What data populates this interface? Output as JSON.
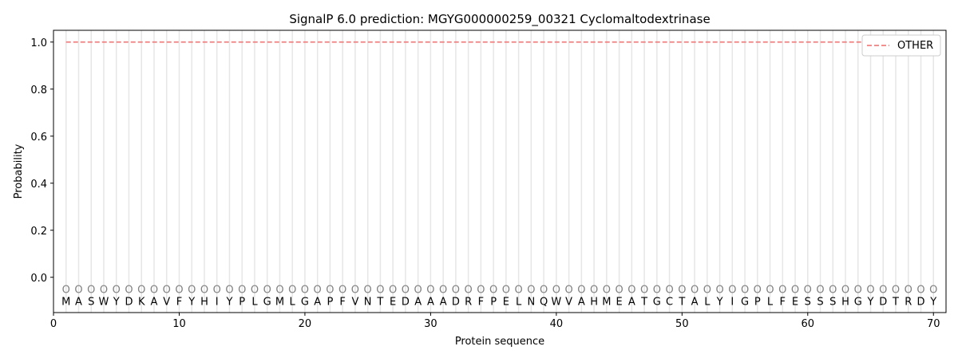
{
  "chart_data": {
    "type": "line",
    "title": "SignalP 6.0 prediction: MGYG000000259_00321 Cyclomaltodextrinase",
    "xlabel": "Protein sequence",
    "ylabel": "Probability",
    "xlim": [
      0,
      71
    ],
    "ylim": [
      -0.15,
      1.05
    ],
    "xticks": [
      0,
      10,
      20,
      30,
      40,
      50,
      60,
      70
    ],
    "yticks": [
      0.0,
      0.2,
      0.4,
      0.6,
      0.8,
      1.0
    ],
    "ytick_labels": [
      "0.0",
      "0.2",
      "0.4",
      "0.6",
      "0.8",
      "1.0"
    ],
    "grid": "vertical lines at each residue",
    "legend_position": "top-right",
    "sequence": [
      "M",
      "A",
      "S",
      "W",
      "Y",
      "D",
      "K",
      "A",
      "V",
      "F",
      "Y",
      "H",
      "I",
      "Y",
      "P",
      "L",
      "G",
      "M",
      "L",
      "G",
      "A",
      "P",
      "F",
      "V",
      "N",
      "T",
      "E",
      "D",
      "A",
      "A",
      "A",
      "D",
      "R",
      "F",
      "P",
      "E",
      "L",
      "N",
      "Q",
      "W",
      "V",
      "A",
      "H",
      "M",
      "E",
      "A",
      "T",
      "G",
      "C",
      "T",
      "A",
      "L",
      "Y",
      "I",
      "G",
      "P",
      "L",
      "F",
      "E",
      "S",
      "S",
      "S",
      "H",
      "G",
      "Y",
      "D",
      "T",
      "R",
      "D",
      "Y"
    ],
    "region_label": "O",
    "series": [
      {
        "name": "OTHER",
        "color": "#f08080",
        "style": "dashed",
        "x_range": [
          1,
          70
        ],
        "value": 1.0
      }
    ]
  }
}
